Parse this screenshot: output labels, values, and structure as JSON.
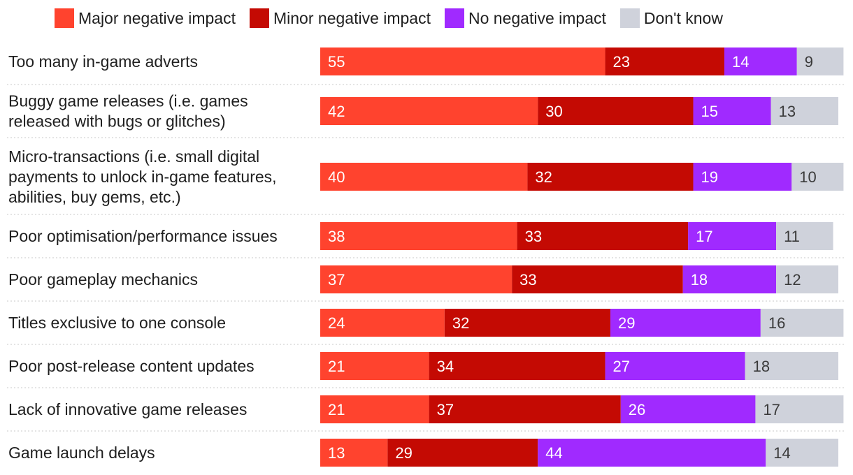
{
  "chart_data": {
    "type": "bar",
    "orientation": "horizontal",
    "stacked": true,
    "title": "",
    "xlabel": "",
    "ylabel": "",
    "xlim": [
      0,
      100
    ],
    "grid": false,
    "legend_position": "top",
    "categories": [
      [
        "Too many in-game adverts"
      ],
      [
        "Buggy game releases (i.e. games",
        "released with bugs or glitches)"
      ],
      [
        "Micro-transactions (i.e. small digital",
        "payments to unlock in-game features,",
        "abilities, buy gems, etc.)"
      ],
      [
        "Poor optimisation/performance issues"
      ],
      [
        "Poor gameplay mechanics"
      ],
      [
        "Titles exclusive to one console"
      ],
      [
        "Poor post-release content updates"
      ],
      [
        "Lack of innovative game releases"
      ],
      [
        "Game launch delays"
      ]
    ],
    "series": [
      {
        "name": "Major negative impact",
        "color": "#ff432e",
        "label_color": "#ffffff",
        "values": [
          55,
          42,
          40,
          38,
          37,
          24,
          21,
          21,
          13
        ]
      },
      {
        "name": "Minor negative impact",
        "color": "#c40a03",
        "label_color": "#ffffff",
        "values": [
          23,
          30,
          32,
          33,
          33,
          32,
          34,
          37,
          29
        ]
      },
      {
        "name": "No negative impact",
        "color": "#a02aff",
        "label_color": "#ffffff",
        "values": [
          14,
          15,
          19,
          17,
          18,
          29,
          27,
          26,
          44
        ]
      },
      {
        "name": "Don't know",
        "color": "#cfd2db",
        "label_color": "#3a3a3a",
        "values": [
          9,
          13,
          10,
          11,
          12,
          16,
          18,
          17,
          14
        ]
      }
    ]
  }
}
